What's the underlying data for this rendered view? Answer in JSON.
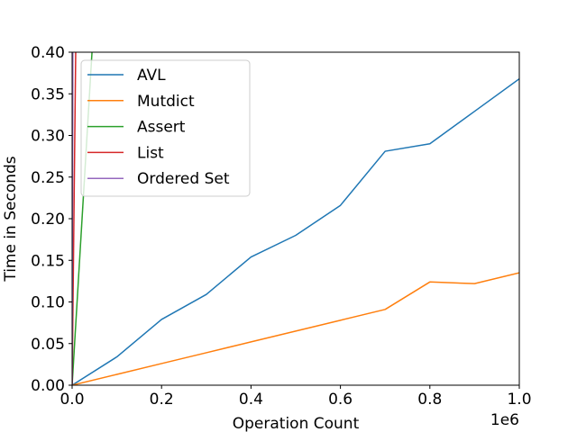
{
  "chart_data": {
    "type": "line",
    "xlabel": "Operation Count",
    "ylabel": "Time in Seconds",
    "x_offset_label": "1e6",
    "xlim": [
      0,
      1000000
    ],
    "ylim": [
      0,
      0.4
    ],
    "x_ticks": [
      0,
      200000,
      400000,
      600000,
      800000,
      1000000
    ],
    "x_tick_labels": [
      "0.0",
      "0.2",
      "0.4",
      "0.6",
      "0.8",
      "1.0"
    ],
    "y_ticks": [
      0,
      0.05,
      0.1,
      0.15,
      0.2,
      0.25,
      0.3,
      0.35,
      0.4
    ],
    "y_tick_labels": [
      "0.00",
      "0.05",
      "0.10",
      "0.15",
      "0.20",
      "0.25",
      "0.30",
      "0.35",
      "0.40"
    ],
    "grid": false,
    "legend_position": "top-left",
    "series": [
      {
        "name": "AVL",
        "color": "#1f77b4",
        "x": [
          0,
          100000,
          200000,
          300000,
          400000,
          500000,
          600000,
          700000,
          800000,
          900000,
          1000000
        ],
        "y": [
          0.0,
          0.034,
          0.079,
          0.109,
          0.154,
          0.18,
          0.216,
          0.281,
          0.29,
          0.329,
          0.368
        ]
      },
      {
        "name": "Mutdict",
        "color": "#ff7f0e",
        "x": [
          0,
          100000,
          200000,
          300000,
          400000,
          500000,
          600000,
          700000,
          800000,
          900000,
          1000000
        ],
        "y": [
          0.0,
          0.013,
          0.026,
          0.039,
          0.052,
          0.065,
          0.078,
          0.091,
          0.124,
          0.122,
          0.135
        ]
      },
      {
        "name": "Assert",
        "color": "#2ca02c",
        "x": [
          0,
          50000
        ],
        "y": [
          0.0,
          0.45
        ]
      },
      {
        "name": "List",
        "color": "#d62728",
        "x": [
          0,
          10000
        ],
        "y": [
          0.0,
          0.5
        ]
      },
      {
        "name": "Ordered Set",
        "color": "#9467bd",
        "x": [
          0,
          2000
        ],
        "y": [
          0.0,
          0.5
        ]
      }
    ]
  }
}
